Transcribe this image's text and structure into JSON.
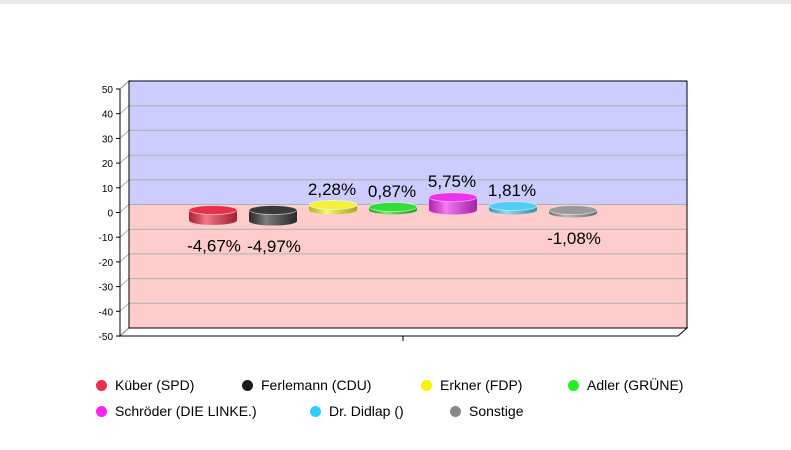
{
  "chart_data": {
    "type": "bar",
    "categories": [
      "Küber (SPD)",
      "Ferlemann (CDU)",
      "Erkner (FDP)",
      "Adler (GRÜNE)",
      "Schröder (DIE LINKE.)",
      "Dr. Didlap ()",
      "Sonstige"
    ],
    "values": [
      -4.67,
      -4.97,
      2.28,
      0.87,
      5.75,
      1.81,
      -1.08
    ],
    "value_labels": [
      "-4,67%",
      "-4,97%",
      "2,28%",
      "0,87%",
      "5,75%",
      "1,81%",
      "-1,08%"
    ],
    "colors": [
      "#e8304a",
      "#3a3a3a",
      "#f2f23a",
      "#33dd33",
      "#ee33ee",
      "#55ccf5",
      "#9a9a9a"
    ],
    "ylim": [
      -50,
      50
    ],
    "yticks": [
      "50",
      "40",
      "30",
      "20",
      "10",
      "0",
      "-10",
      "-20",
      "-30",
      "-40",
      "-50"
    ],
    "ytick_values": [
      50,
      40,
      30,
      20,
      10,
      0,
      -10,
      -20,
      -30,
      -40,
      -50
    ],
    "grid": true,
    "background_positive": "#ccccff",
    "background_negative": "#ffcccc",
    "legend_position": "bottom"
  },
  "legend": {
    "items": [
      {
        "label": "Küber (SPD)",
        "color": "#e8304a"
      },
      {
        "label": "Ferlemann (CDU)",
        "color": "#1a1a1a"
      },
      {
        "label": "Erkner (FDP)",
        "color": "#f5f500"
      },
      {
        "label": "Adler (GRÜNE)",
        "color": "#22ee22"
      },
      {
        "label": "Schröder (DIE LINKE.)",
        "color": "#ff22ff"
      },
      {
        "label": "Dr. Didlap ()",
        "color": "#33ccff"
      },
      {
        "label": "Sonstige",
        "color": "#888888"
      }
    ]
  }
}
